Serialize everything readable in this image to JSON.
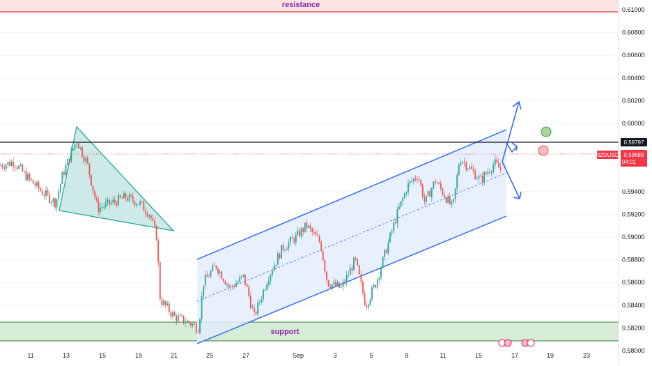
{
  "chart_data": {
    "type": "candlestick",
    "symbol": "NZDUSD",
    "last_price": "0.59689",
    "countdown": "04:01",
    "level_price": "0.59797",
    "ylim": [
      0.58,
      0.611
    ],
    "y_ticks": [
      "0.61000",
      "0.60800",
      "0.60600",
      "0.60400",
      "0.60200",
      "0.60000",
      "0.59400",
      "0.59200",
      "0.59000",
      "0.58800",
      "0.58600",
      "0.58400",
      "0.58200",
      "0.58000"
    ],
    "x_ticks": [
      "11",
      "13",
      "15",
      "19",
      "21",
      "25",
      "27",
      "Sep",
      "3",
      "5",
      "9",
      "11",
      "15",
      "17",
      "19",
      "23"
    ],
    "zones": {
      "resistance": "resistance",
      "support": "support"
    },
    "resistance_range": [
      0.6098,
      0.6115
    ],
    "support_range": [
      0.58,
      0.5817
    ],
    "horizontal_level": 0.59797,
    "colors": {
      "up": "#26a69a",
      "down": "#ef5350",
      "channel": "#2962ff",
      "triangle_fill": "#b2dfdb",
      "triangle_line": "#26a69a",
      "resistance_fill": "#fce4e4",
      "resistance_line": "#e53935",
      "support_fill": "#d6ecd6",
      "support_line": "#2e7d32",
      "zone_text": "#8e24aa",
      "price_tag": "#f23645",
      "level_tag": "#131722",
      "green_circle": "#8bd17c",
      "red_circle": "#f4a0a4"
    },
    "icons": [
      "flag-icon",
      "flag-icon"
    ]
  }
}
